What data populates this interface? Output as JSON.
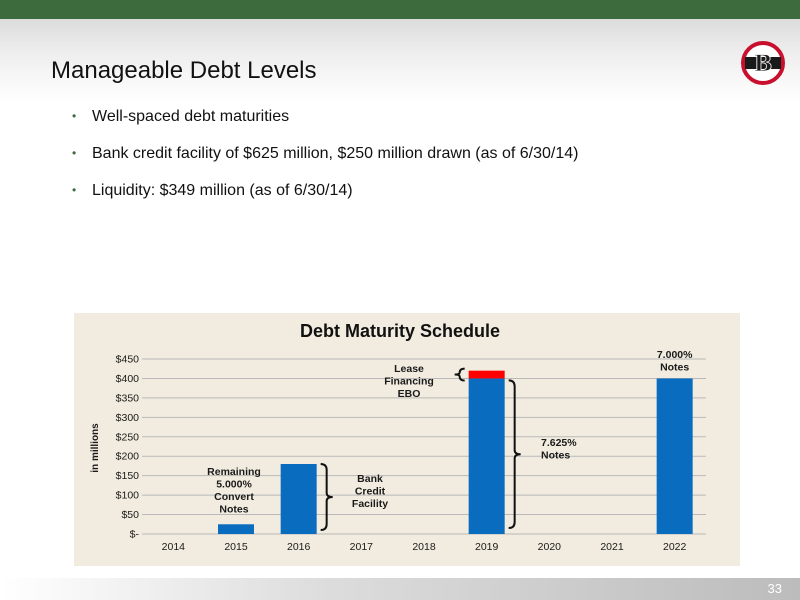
{
  "slide": {
    "title": "Manageable Debt Levels",
    "page_number": "33",
    "bullets": [
      "Well-spaced debt maturities",
      "Bank credit facility of $625 million, $250 million drawn (as of 6/30/14)",
      "Liquidity: $349 million (as of 6/30/14)"
    ]
  },
  "colors": {
    "brand_green": "#3d6b3d",
    "bar_blue": "#0a6cbf",
    "lease_red": "#ff0000",
    "panel_bg": "#f1ecdf",
    "logo_red": "#c8102e"
  },
  "logo": {
    "letter": "B"
  },
  "chart_data": {
    "type": "bar",
    "title": "Debt Maturity Schedule",
    "ylabel": "in millions",
    "xlabel": "",
    "ylim": [
      0,
      450
    ],
    "ytick_labels": [
      "$-",
      "$50",
      "$100",
      "$150",
      "$200",
      "$250",
      "$300",
      "$350",
      "$400",
      "$450"
    ],
    "ytick_values": [
      0,
      50,
      100,
      150,
      200,
      250,
      300,
      350,
      400,
      450
    ],
    "categories": [
      "2014",
      "2015",
      "2016",
      "2017",
      "2018",
      "2019",
      "2020",
      "2021",
      "2022"
    ],
    "stacked": true,
    "series": [
      {
        "values": [
          0,
          25,
          180,
          0,
          0,
          400,
          0,
          0,
          400
        ]
      },
      {
        "values": [
          0,
          0,
          0,
          0,
          0,
          20,
          0,
          0,
          0
        ]
      }
    ],
    "grid": true,
    "annotations": {
      "remaining_convert": [
        "Remaining",
        "5.000%",
        "Convert",
        "Notes"
      ],
      "bank_credit": [
        "Bank",
        "Credit",
        "Facility"
      ],
      "lease_financing": [
        "Lease",
        "Financing",
        "EBO"
      ],
      "notes_7625": [
        "7.625%",
        "Notes"
      ],
      "notes_7000": [
        "7.000%",
        "Notes"
      ]
    }
  }
}
